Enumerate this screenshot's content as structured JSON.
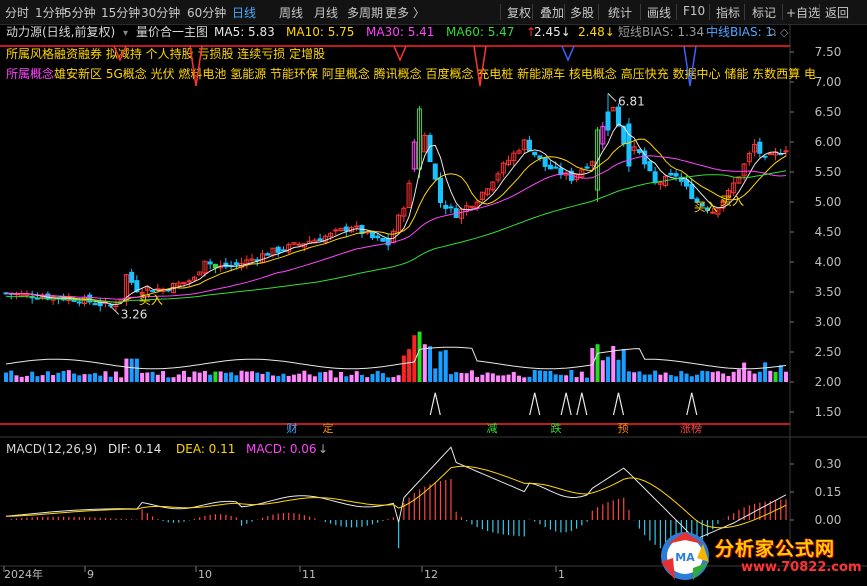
{
  "toolbar": {
    "periods": [
      "分时",
      "1分钟",
      "5分钟",
      "15分钟",
      "30分钟",
      "60分钟",
      "日线",
      "周线",
      "月线",
      "多周期",
      "更多 〉"
    ],
    "active_period": "日线",
    "tools": [
      "复权",
      "叠加",
      "多股",
      "统计",
      "画线",
      "F10",
      "标记",
      "+自选",
      "返回"
    ],
    "tools_prefix": "指标"
  },
  "main_panel": {
    "title": "动力源(日线,前复权)",
    "indicator_name": "量价合一主图",
    "ma": [
      {
        "label": "MA5: 5.83",
        "color": "#e8e8e8"
      },
      {
        "label": "MA10: 5.75",
        "color": "#ffd600"
      },
      {
        "label": "MA30: 5.41",
        "color": "#ff44ff"
      },
      {
        "label": "MA60: 5.47",
        "color": "#33dd33"
      }
    ],
    "extra_values": [
      "2.45↓",
      "2.48↓"
    ],
    "bias_labels": [
      {
        "label": "短线BIAS: 1.34",
        "color": "#9a9a9a"
      },
      {
        "label": "中线BIAS: 1.",
        "color": "#4aa8ff"
      }
    ],
    "style_label": "所属风格",
    "style_tags": "融资融券 拟减持 个人持股 亏损股 连续亏损 定增股",
    "concept_label": "所属概念",
    "concept_tags": "雄安新区 5G概念 光伏 燃料电池 氢能源 节能环保 阿里概念 腾讯概念 百度概念 充电桩 新能源车 核电概念 高压快充 数据中心 储能 东数西算 电",
    "price_high_label": "6.81",
    "price_low_label": "3.26",
    "buy_signals": [
      "买入",
      "买入",
      "买入"
    ],
    "y_axis": [
      "7.50",
      "7.00",
      "6.50",
      "6.00",
      "5.50",
      "5.00",
      "4.50",
      "4.00",
      "3.50",
      "3.00",
      "2.50",
      "2.00",
      "1.50"
    ],
    "event_tags": [
      {
        "text": "财",
        "color": "#4aa8ff"
      },
      {
        "text": "定",
        "color": "#ff8800"
      },
      {
        "text": "减",
        "color": "#33dd33"
      },
      {
        "text": "跌",
        "color": "#33dd33"
      },
      {
        "text": "预",
        "color": "#ff8800"
      },
      {
        "text": "涨榜",
        "color": "#ff4444"
      }
    ]
  },
  "macd_panel": {
    "title": "MACD(12,26,9)",
    "dif": "DIF: 0.14",
    "dea": "DEA: 0.11",
    "macd": "MACD: 0.06",
    "y_axis": [
      "0.30",
      "0.15",
      "0.00"
    ]
  },
  "x_axis": [
    "2024年",
    "9",
    "10",
    "11",
    "12",
    "1"
  ],
  "colors": {
    "up": "#ff3333",
    "down": "#19c3ff",
    "ma5": "#e8e8e8",
    "ma10": "#ffd600",
    "ma30": "#ff44ff",
    "ma60": "#33dd33",
    "vol_pink": "#ff88ff",
    "vol_blue": "#1a9eff",
    "vol_green": "#22dd22"
  },
  "watermark": {
    "main": "分析家公式网",
    "url": "www.70822.com"
  },
  "chart_data": {
    "type": "candlestick",
    "title": "动力源(日线,前复权)",
    "ylim": [
      1.2,
      7.85
    ],
    "annotated_high": 6.81,
    "annotated_low": 3.26,
    "ma_latest": {
      "MA5": 5.83,
      "MA10": 5.75,
      "MA30": 5.41,
      "MA60": 5.47
    },
    "macd_latest": {
      "DIF": 0.14,
      "DEA": 0.11,
      "MACD": 0.06
    }
  }
}
